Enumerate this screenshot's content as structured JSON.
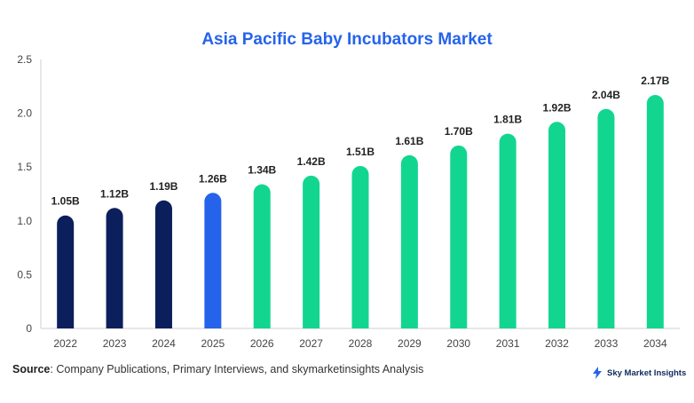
{
  "chart_data": {
    "type": "bar",
    "title": "Asia Pacific Baby Incubators Market",
    "categories": [
      "2022",
      "2023",
      "2024",
      "2025",
      "2026",
      "2027",
      "2028",
      "2029",
      "2030",
      "2031",
      "2032",
      "2033",
      "2034"
    ],
    "values": [
      1.05,
      1.12,
      1.19,
      1.26,
      1.34,
      1.42,
      1.51,
      1.61,
      1.7,
      1.81,
      1.92,
      2.04,
      2.17
    ],
    "data_labels": [
      "1.05B",
      "1.12B",
      "1.19B",
      "1.26B",
      "1.34B",
      "1.42B",
      "1.51B",
      "1.61B",
      "1.70B",
      "1.81B",
      "1.92B",
      "2.04B",
      "2.17B"
    ],
    "ylim": [
      0,
      2.5
    ],
    "yticks": [
      "0",
      "0.5",
      "1.0",
      "1.5",
      "2.0",
      "2.5"
    ],
    "xlabel": "",
    "ylabel": "",
    "grid": false,
    "bar_colors": [
      "#0b1f5c",
      "#0b1f5c",
      "#0b1f5c",
      "#2563eb",
      "#12d68f",
      "#12d68f",
      "#12d68f",
      "#12d68f",
      "#12d68f",
      "#12d68f",
      "#12d68f",
      "#12d68f",
      "#12d68f"
    ]
  },
  "source": {
    "label": "Source",
    "text": ": Company Publications, Primary Interviews, and skymarketinsights Analysis"
  },
  "brand": {
    "name": "Sky Market Insights",
    "icon": "lightning-bolt-icon",
    "color": "#2563eb"
  }
}
